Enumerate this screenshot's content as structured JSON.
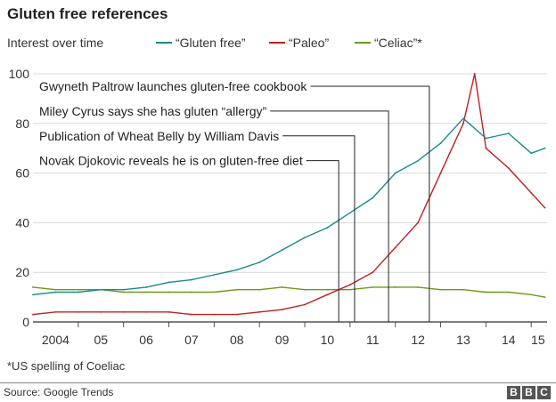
{
  "header": {
    "title": "Gluten free references",
    "subtitle": "Interest over time"
  },
  "chart_data": {
    "type": "line",
    "ylabel": "",
    "xlabel": "",
    "ylim": [
      0,
      100
    ],
    "xlim": [
      2004.0,
      2015.35
    ],
    "y_ticks": [
      0,
      20,
      40,
      60,
      80,
      100
    ],
    "x_tick_labels": [
      {
        "label": "2004",
        "x": 2004.5
      },
      {
        "label": "05",
        "x": 2005.5
      },
      {
        "label": "06",
        "x": 2006.5
      },
      {
        "label": "07",
        "x": 2007.5
      },
      {
        "label": "08",
        "x": 2008.5
      },
      {
        "label": "09",
        "x": 2009.5
      },
      {
        "label": "10",
        "x": 2010.5
      },
      {
        "label": "11",
        "x": 2011.5
      },
      {
        "label": "12",
        "x": 2012.5
      },
      {
        "label": "13",
        "x": 2013.5
      },
      {
        "label": "14",
        "x": 2014.5
      },
      {
        "label": "15",
        "x": 2015.15
      }
    ],
    "grid": true,
    "legend_position": "top",
    "series": [
      {
        "name": "“Gluten free”",
        "color": "#1a8a90",
        "x": [
          2004.0,
          2004.5,
          2005.0,
          2005.5,
          2006.0,
          2006.5,
          2007.0,
          2007.5,
          2008.0,
          2008.5,
          2009.0,
          2009.5,
          2010.0,
          2010.5,
          2011.0,
          2011.5,
          2012.0,
          2012.5,
          2013.0,
          2013.5,
          2014.0,
          2014.5,
          2015.0,
          2015.3
        ],
        "values": [
          11,
          12,
          12,
          13,
          13,
          14,
          16,
          17,
          19,
          21,
          24,
          29,
          34,
          38,
          44,
          50,
          60,
          65,
          72,
          82,
          74,
          76,
          68,
          70
        ]
      },
      {
        "name": "“Paleo”",
        "color": "#c0201e",
        "x": [
          2004.0,
          2004.5,
          2005.0,
          2005.5,
          2006.0,
          2006.5,
          2007.0,
          2007.5,
          2008.0,
          2008.5,
          2009.0,
          2009.5,
          2010.0,
          2010.5,
          2011.0,
          2011.5,
          2012.0,
          2012.5,
          2013.0,
          2013.5,
          2013.75,
          2014.0,
          2014.5,
          2015.0,
          2015.3
        ],
        "values": [
          3,
          4,
          4,
          4,
          4,
          4,
          4,
          3,
          3,
          3,
          4,
          5,
          7,
          11,
          15,
          20,
          30,
          40,
          60,
          80,
          100,
          70,
          62,
          52,
          46
        ]
      },
      {
        "name": "“Celiac”*",
        "color": "#6a9a1a",
        "x": [
          2004.0,
          2004.5,
          2005.0,
          2005.5,
          2006.0,
          2006.5,
          2007.0,
          2007.5,
          2008.0,
          2008.5,
          2009.0,
          2009.5,
          2010.0,
          2010.5,
          2011.0,
          2011.5,
          2012.0,
          2012.5,
          2013.0,
          2013.5,
          2014.0,
          2014.5,
          2015.0,
          2015.3
        ],
        "values": [
          14,
          13,
          13,
          13,
          12,
          12,
          12,
          12,
          12,
          13,
          13,
          14,
          13,
          13,
          13,
          14,
          14,
          14,
          13,
          13,
          12,
          12,
          11,
          10
        ]
      }
    ],
    "annotations": [
      {
        "label": "Gwyneth Paltrow launches gluten-free cookbook",
        "x": 2012.75,
        "y": 95
      },
      {
        "label": "Miley Cyrus says she has gluten “allergy”",
        "x": 2011.85,
        "y": 85
      },
      {
        "label": "Publication of Wheat Belly by William Davis",
        "x": 2011.1,
        "y": 75
      },
      {
        "label": "Novak Djokovic reveals he is on gluten-free diet",
        "x": 2010.75,
        "y": 65
      }
    ]
  },
  "footnote": "*US spelling of Coeliac",
  "source": "Source: Google Trends",
  "brand": [
    "B",
    "B",
    "C"
  ]
}
